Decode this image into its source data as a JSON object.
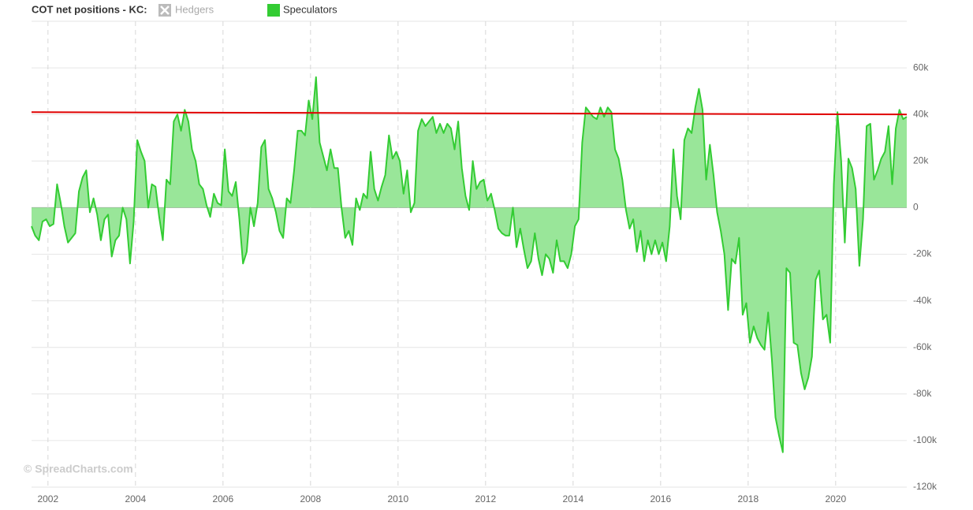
{
  "chart_data": {
    "type": "area",
    "title": "COT net positions - KC:",
    "watermark": "© SpreadCharts.com",
    "hidden_series": [
      {
        "name": "Hedgers",
        "color": "#bbbbbb"
      }
    ],
    "x": [
      2001.625,
      2001.708,
      2001.792,
      2001.875,
      2001.958,
      2002.042,
      2002.125,
      2002.208,
      2002.292,
      2002.375,
      2002.458,
      2002.542,
      2002.625,
      2002.708,
      2002.792,
      2002.875,
      2002.958,
      2003.042,
      2003.125,
      2003.208,
      2003.292,
      2003.375,
      2003.458,
      2003.542,
      2003.625,
      2003.708,
      2003.792,
      2003.875,
      2003.958,
      2004.042,
      2004.125,
      2004.208,
      2004.292,
      2004.375,
      2004.458,
      2004.542,
      2004.625,
      2004.708,
      2004.792,
      2004.875,
      2004.958,
      2005.042,
      2005.125,
      2005.208,
      2005.292,
      2005.375,
      2005.458,
      2005.542,
      2005.625,
      2005.708,
      2005.792,
      2005.875,
      2005.958,
      2006.042,
      2006.125,
      2006.208,
      2006.292,
      2006.375,
      2006.458,
      2006.542,
      2006.625,
      2006.708,
      2006.792,
      2006.875,
      2006.958,
      2007.042,
      2007.125,
      2007.208,
      2007.292,
      2007.375,
      2007.458,
      2007.542,
      2007.625,
      2007.708,
      2007.792,
      2007.875,
      2007.958,
      2008.042,
      2008.125,
      2008.208,
      2008.292,
      2008.375,
      2008.458,
      2008.542,
      2008.625,
      2008.708,
      2008.792,
      2008.875,
      2008.958,
      2009.042,
      2009.125,
      2009.208,
      2009.292,
      2009.375,
      2009.458,
      2009.542,
      2009.625,
      2009.708,
      2009.792,
      2009.875,
      2009.958,
      2010.042,
      2010.125,
      2010.208,
      2010.292,
      2010.375,
      2010.458,
      2010.542,
      2010.625,
      2010.708,
      2010.792,
      2010.875,
      2010.958,
      2011.042,
      2011.125,
      2011.208,
      2011.292,
      2011.375,
      2011.458,
      2011.542,
      2011.625,
      2011.708,
      2011.792,
      2011.875,
      2011.958,
      2012.042,
      2012.125,
      2012.208,
      2012.292,
      2012.375,
      2012.458,
      2012.542,
      2012.625,
      2012.708,
      2012.792,
      2012.875,
      2012.958,
      2013.042,
      2013.125,
      2013.208,
      2013.292,
      2013.375,
      2013.458,
      2013.542,
      2013.625,
      2013.708,
      2013.792,
      2013.875,
      2013.958,
      2014.042,
      2014.125,
      2014.208,
      2014.292,
      2014.375,
      2014.458,
      2014.542,
      2014.625,
      2014.708,
      2014.792,
      2014.875,
      2014.958,
      2015.042,
      2015.125,
      2015.208,
      2015.292,
      2015.375,
      2015.458,
      2015.542,
      2015.625,
      2015.708,
      2015.792,
      2015.875,
      2015.958,
      2016.042,
      2016.125,
      2016.208,
      2016.292,
      2016.375,
      2016.458,
      2016.542,
      2016.625,
      2016.708,
      2016.792,
      2016.875,
      2016.958,
      2017.042,
      2017.125,
      2017.208,
      2017.292,
      2017.375,
      2017.458,
      2017.542,
      2017.625,
      2017.708,
      2017.792,
      2017.875,
      2017.958,
      2018.042,
      2018.125,
      2018.208,
      2018.292,
      2018.375,
      2018.458,
      2018.542,
      2018.625,
      2018.708,
      2018.792,
      2018.875,
      2018.958,
      2019.042,
      2019.125,
      2019.208,
      2019.292,
      2019.375,
      2019.458,
      2019.542,
      2019.625,
      2019.708,
      2019.792,
      2019.875,
      2019.958,
      2020.042,
      2020.125,
      2020.208,
      2020.292,
      2020.375,
      2020.458,
      2020.542,
      2020.625,
      2020.708,
      2020.792,
      2020.875,
      2020.958,
      2021.042,
      2021.125,
      2021.208,
      2021.292,
      2021.375,
      2021.458,
      2021.542,
      2021.625
    ],
    "series": [
      {
        "name": "Speculators",
        "color": "#33cc33",
        "fill": "#99e699",
        "values": [
          -8000,
          -12000,
          -14000,
          -6000,
          -5000,
          -8000,
          -7000,
          10000,
          2000,
          -8000,
          -15000,
          -13000,
          -11000,
          7000,
          13000,
          16000,
          -2000,
          4000,
          -3000,
          -14000,
          -5000,
          -3000,
          -21000,
          -14000,
          -12000,
          0,
          -5000,
          -24000,
          -6000,
          29000,
          24000,
          20000,
          0,
          10000,
          9000,
          -4000,
          -14000,
          12000,
          10000,
          37000,
          40000,
          33000,
          42000,
          37000,
          25000,
          20000,
          10000,
          8000,
          1000,
          -4000,
          6000,
          2000,
          1000,
          25000,
          7000,
          5000,
          11000,
          -5000,
          -24000,
          -19000,
          0,
          -8000,
          2000,
          26000,
          29000,
          8000,
          4000,
          -2000,
          -10000,
          -13000,
          4000,
          2000,
          16000,
          33000,
          33000,
          31000,
          46000,
          38000,
          56000,
          28000,
          22000,
          16000,
          25000,
          17000,
          17000,
          0,
          -13000,
          -10000,
          -16000,
          4000,
          -1000,
          6000,
          4000,
          24000,
          8000,
          3000,
          9000,
          14000,
          31000,
          21000,
          24000,
          20000,
          6000,
          16000,
          -2000,
          2000,
          33000,
          38000,
          35000,
          37000,
          39000,
          32000,
          36000,
          32000,
          36000,
          34000,
          25000,
          37000,
          17000,
          5000,
          -1000,
          20000,
          8000,
          11000,
          12000,
          3000,
          6000,
          -1000,
          -9000,
          -11000,
          -12000,
          -12000,
          0,
          -17000,
          -9000,
          -18000,
          -26000,
          -23000,
          -11000,
          -22000,
          -29000,
          -20000,
          -22000,
          -28000,
          -14000,
          -23000,
          -23000,
          -26000,
          -20000,
          -8000,
          -5000,
          28000,
          43000,
          41000,
          39000,
          38000,
          43000,
          39000,
          43000,
          41000,
          25000,
          21000,
          12000,
          -1000,
          -9000,
          -5000,
          -19000,
          -10000,
          -23000,
          -14000,
          -20000,
          -14000,
          -20000,
          -15000,
          -23000,
          -8000,
          25000,
          5000,
          -5000,
          29000,
          34000,
          32000,
          43000,
          51000,
          42000,
          12000,
          27000,
          14000,
          -2000,
          -10000,
          -20000,
          -44000,
          -22000,
          -24000,
          -13000,
          -46000,
          -41000,
          -58000,
          -51000,
          -56000,
          -59000,
          -61000,
          -45000,
          -65000,
          -90000,
          -98000,
          -105000,
          -26000,
          -28000,
          -58000,
          -59000,
          -71000,
          -78000,
          -73000,
          -64000,
          -31000,
          -27000,
          -48000,
          -46000,
          -58000,
          10000,
          41000,
          20000,
          -15000,
          21000,
          17000,
          8000,
          -25000,
          -5000,
          35000,
          36000,
          12000,
          16000,
          21000,
          24000,
          35000,
          10000,
          34000,
          42000,
          38000,
          39000
        ]
      }
    ],
    "reference_line": {
      "x": [
        2001.625,
        2021.625
      ],
      "values": [
        41000,
        40000
      ],
      "color": "#e00000"
    },
    "xlim": [
      2001.625,
      2021.625
    ],
    "xticks": [
      2002,
      2004,
      2006,
      2008,
      2010,
      2012,
      2014,
      2016,
      2018,
      2020
    ],
    "ylim": [
      -120000,
      80000
    ],
    "yticks": [
      {
        "value": -120000,
        "label": "-120k"
      },
      {
        "value": -100000,
        "label": "-100k"
      },
      {
        "value": -80000,
        "label": "-80k"
      },
      {
        "value": -60000,
        "label": "-60k"
      },
      {
        "value": -40000,
        "label": "-40k"
      },
      {
        "value": -20000,
        "label": "-20k"
      },
      0,
      {
        "value": 20000,
        "label": "20k"
      },
      {
        "value": 40000,
        "label": "40k"
      },
      {
        "value": 60000,
        "label": "60k"
      }
    ],
    "grid": true
  }
}
